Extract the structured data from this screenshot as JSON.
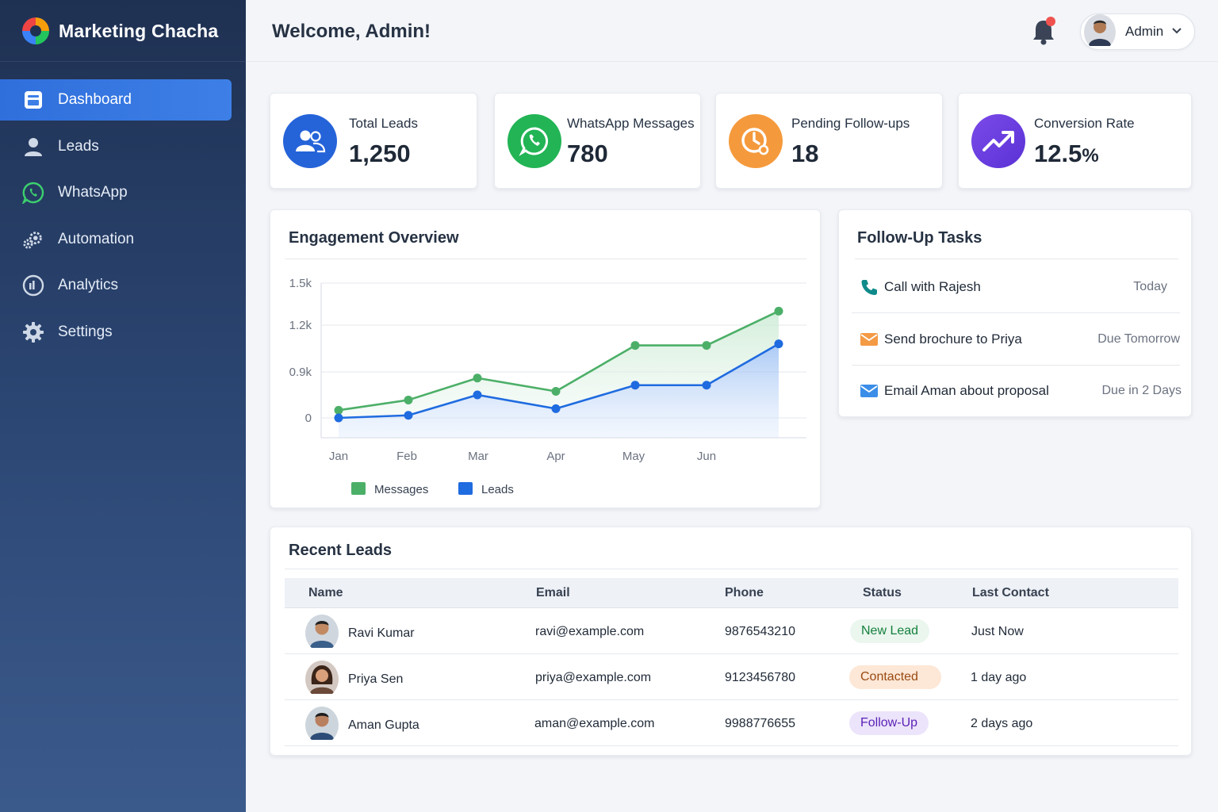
{
  "brand": {
    "name": "Marketing Chacha"
  },
  "sidebar": {
    "items": [
      {
        "label": "Dashboard",
        "icon": "dashboard-icon",
        "active": true
      },
      {
        "label": "Leads",
        "icon": "user-icon"
      },
      {
        "label": "WhatsApp",
        "icon": "whatsapp-icon"
      },
      {
        "label": "Automation",
        "icon": "automation-gears-icon"
      },
      {
        "label": "Analytics",
        "icon": "analytics-gauge-icon"
      },
      {
        "label": "Settings",
        "icon": "gear-icon"
      }
    ]
  },
  "header": {
    "welcome": "Welcome, Admin!",
    "user": "Admin",
    "notification_dot_color": "#ef5350"
  },
  "stats": [
    {
      "label": "Total Leads",
      "value": "1,250",
      "icon": "users-icon",
      "color": "#2563d9"
    },
    {
      "label": "WhatsApp Messages",
      "value": "780",
      "icon": "whatsapp-icon",
      "color": "#22b455"
    },
    {
      "label": "Pending Follow-ups",
      "value": "18",
      "icon": "clock-icon",
      "color": "#f59a3c"
    },
    {
      "label": "Conversion Rate",
      "value": "12.5",
      "unit": "%",
      "icon": "trend-up-icon",
      "color": "#6d3fe0"
    }
  ],
  "engagement": {
    "title": "Engagement Overview"
  },
  "chart_data": {
    "type": "area",
    "title": "Engagement Overview",
    "xlabel": "",
    "ylabel": "",
    "y_tick_labels": [
      "0",
      "0.9k",
      "1.2k",
      "1.5k"
    ],
    "x_tick_labels": [
      "Jan",
      "Feb",
      "Mar",
      "Apr",
      "May",
      "Jun"
    ],
    "y_ticks": [
      0,
      0.9,
      1.2,
      1.5
    ],
    "grid": true,
    "legend_position": "bottom",
    "x": [
      1,
      2,
      3,
      4,
      5,
      6,
      7
    ],
    "series": [
      {
        "name": "Messages",
        "color": "#4caf68",
        "values": [
          0.15,
          0.35,
          0.78,
          0.52,
          1.07,
          1.07,
          1.3
        ]
      },
      {
        "name": "Leads",
        "color": "#1f6be0",
        "values": [
          0.0,
          0.05,
          0.45,
          0.18,
          0.64,
          0.64,
          1.08
        ]
      }
    ]
  },
  "tasks": {
    "title": "Follow-Up Tasks",
    "items": [
      {
        "title": "Call with Rajesh",
        "due": "Today",
        "icon": "phone-icon"
      },
      {
        "title": "Send brochure to Priya",
        "due": "Due Tomorrow",
        "icon": "envelope-icon"
      },
      {
        "title": "Email Aman about proposal",
        "due": "Due in 2 Days",
        "icon": "envelope-icon"
      }
    ]
  },
  "recent_leads": {
    "title": "Recent Leads",
    "columns": [
      "Name",
      "Email",
      "Phone",
      "Status",
      "Last Contact"
    ],
    "rows": [
      {
        "name": "Ravi Kumar",
        "email": "ravi@example.com",
        "phone": "9876543210",
        "status": "New Lead",
        "last_contact": "Just Now",
        "status_fg": "#15803d",
        "status_bg": "#eaf6ee"
      },
      {
        "name": "Priya Sen",
        "email": "priya@example.com",
        "phone": "9123456780",
        "status": "Contacted",
        "last_contact": "1 day ago",
        "status_fg": "#9a4a13",
        "status_bg": "#fde7d6"
      },
      {
        "name": "Aman Gupta",
        "email": "aman@example.com",
        "phone": "9988776655",
        "status": "Follow-Up",
        "last_contact": "2 days ago",
        "status_fg": "#5b21b6",
        "status_bg": "#ece4fb"
      }
    ]
  }
}
